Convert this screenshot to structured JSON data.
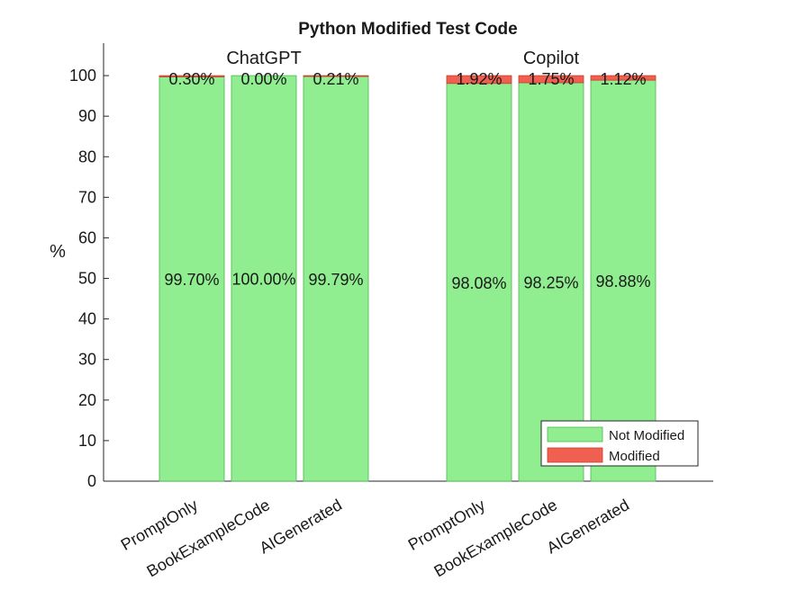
{
  "chart_data": {
    "type": "bar",
    "stacked": true,
    "title": "Python Modified Test Code",
    "ylabel": "%",
    "xlabel": "",
    "ylim": [
      0,
      108
    ],
    "yticks": [
      0,
      10,
      20,
      30,
      40,
      50,
      60,
      70,
      80,
      90,
      100
    ],
    "grid": false,
    "legend_position": "bottom-right",
    "groups": [
      {
        "name": "ChatGPT",
        "categories": [
          "PromptOnly",
          "BookExampleCode",
          "AIGenerated"
        ],
        "not_modified": [
          99.7,
          100.0,
          99.79
        ],
        "modified": [
          0.3,
          0.0,
          0.21
        ],
        "not_modified_labels": [
          "99.70%",
          "100.00%",
          "99.79%"
        ],
        "modified_labels": [
          "0.30%",
          "0.00%",
          "0.21%"
        ]
      },
      {
        "name": "Copilot",
        "categories": [
          "PromptOnly",
          "BookExampleCode",
          "AIGenerated"
        ],
        "not_modified": [
          98.08,
          98.25,
          98.88
        ],
        "modified": [
          1.92,
          1.75,
          1.12
        ],
        "not_modified_labels": [
          "98.08%",
          "98.25%",
          "98.88%"
        ],
        "modified_labels": [
          "1.92%",
          "1.75%",
          "1.12%"
        ]
      }
    ],
    "series": [
      {
        "name": "Not Modified",
        "color": "#90EE90",
        "edge": "#4CB84C"
      },
      {
        "name": "Modified",
        "color": "#F06050",
        "edge": "#C83C30"
      }
    ]
  }
}
